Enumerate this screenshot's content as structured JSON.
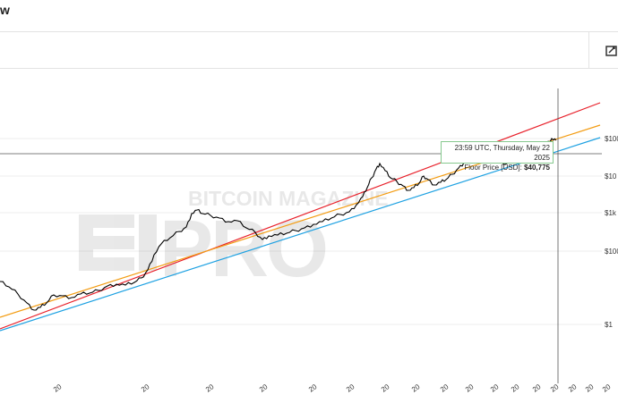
{
  "header": {
    "title": "w",
    "tool_icon": "chart-tool-icon"
  },
  "watermark": {
    "line1": "BITCOIN MAGAZINE",
    "line2": "PRO"
  },
  "tooltip": {
    "time": "23:59 UTC, Thursday, May 22 2025",
    "label": "Floor Price [USD]:",
    "value": "$40,775"
  },
  "colors": {
    "price": "#000000",
    "upper_band": "#e8202a",
    "mid_band": "#f39c12",
    "floor_band": "#1da1e2",
    "crosshair": "#555555",
    "tooltip_border": "#86c98e"
  },
  "chart_data": {
    "type": "line",
    "y_scale": "log",
    "y_tick_labels": [
      "$100",
      "$10",
      "$1k",
      "$100",
      "$1"
    ],
    "x_tick_labels": [
      "20",
      "20",
      "20",
      "20",
      "20",
      "20",
      "20",
      "20",
      "20",
      "20",
      "20",
      "20",
      "20",
      "20",
      "20",
      "20",
      "20"
    ],
    "crosshair_date": "2025-05-22",
    "series": [
      {
        "name": "Floor Price [USD]",
        "values": [
          40775
        ]
      }
    ],
    "grid": true
  }
}
